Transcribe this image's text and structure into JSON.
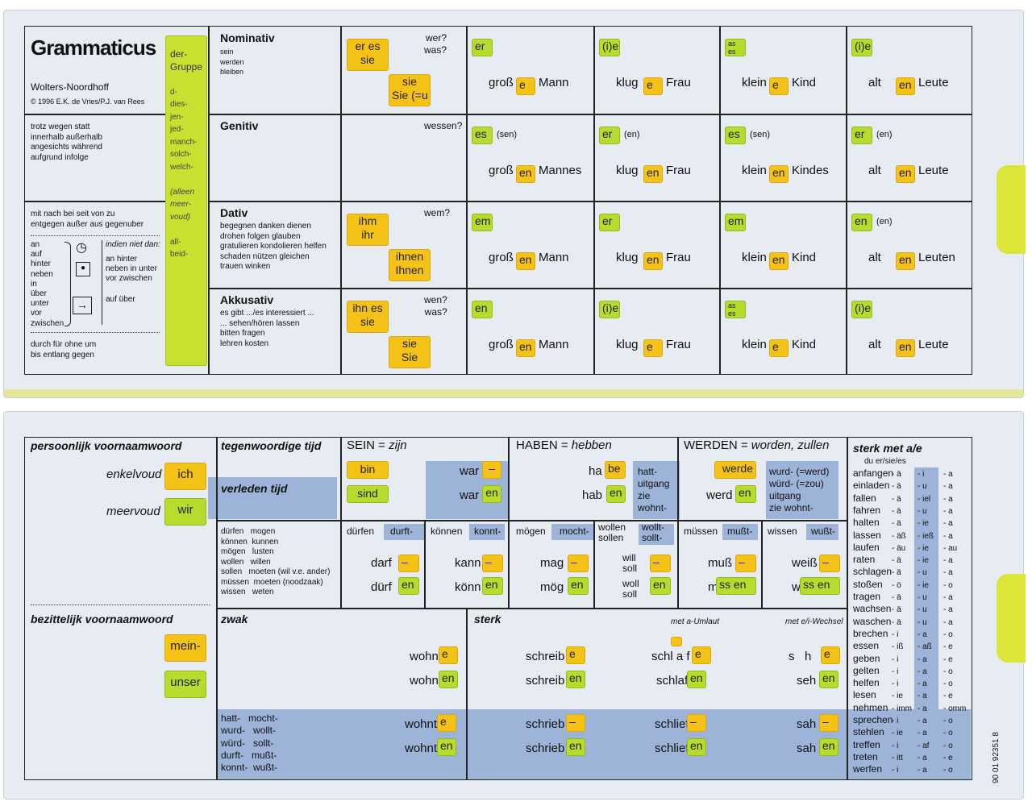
{
  "top": {
    "logo": "Grammaticus",
    "publisher": "Wolters-Noordhoff",
    "copyright": "© 1996 E.K. de Vries/P.J. van Rees",
    "der_gruppe": [
      "der-",
      "Gruppe",
      "",
      "d-",
      "dies-",
      "jen-",
      "jed-",
      "manch-",
      "solch-",
      "welch-",
      "",
      "(alleen",
      "meer-",
      "voud)",
      "",
      "all-",
      "beid-"
    ],
    "prep_gen": [
      "trotz  wegen  statt",
      "innerhalb  außerhalb",
      "angesichts  während",
      "aufgrund  infolge"
    ],
    "prep_dat": [
      "mit  nach  bei  seit  von  zu",
      "entgegen  außer  aus  gegenuber"
    ],
    "prep_wech_left": [
      "an",
      "auf",
      "hinter",
      "neben",
      "in",
      "über",
      "unter",
      "vor",
      "zwischen"
    ],
    "prep_wech_right": [
      "indien niet dan:",
      "an  hinter",
      "neben  in  unter",
      "vor  zwischen",
      "auf  über"
    ],
    "prep_akk": [
      "durch  für  ohne  um",
      "bis  entlang  gegen"
    ],
    "cases": [
      {
        "name": "Nominativ",
        "sub": [
          "sein",
          "werden",
          "bleiben"
        ],
        "q": "wer?\nwas?",
        "y1": "er es\nsie",
        "y2": "sie\nSie (=u",
        "c": [
          {
            "tag": "er",
            "w": [
              "groß",
              "e",
              "Mann"
            ]
          },
          {
            "tag": "(i)e",
            "w": [
              "klug",
              "e",
              "Frau"
            ]
          },
          {
            "tag": "as\nes",
            "w": [
              "klein",
              "e",
              "Kind"
            ]
          },
          {
            "tag": "(i)e",
            "w": [
              "alt",
              "en",
              "Leute"
            ]
          }
        ]
      },
      {
        "name": "Genitiv",
        "sub": [],
        "q": "wessen?",
        "y1": "",
        "y2": "",
        "c": [
          {
            "tag": "es",
            "note": "(sen)",
            "w": [
              "groß",
              "en",
              "Mannes"
            ]
          },
          {
            "tag": "er",
            "note": "(en)",
            "w": [
              "klug",
              "en",
              "Frau"
            ]
          },
          {
            "tag": "es",
            "note": "(sen)",
            "w": [
              "klein",
              "en",
              "Kindes"
            ]
          },
          {
            "tag": "er",
            "note": "(en)",
            "w": [
              "alt",
              "en",
              "Leute"
            ]
          }
        ]
      },
      {
        "name": "Dativ",
        "sub": [
          "begegnen  danken  dienen",
          "drohen  folgen  glauben",
          "gratulieren  kondolieren  helfen",
          "schaden  nützen  gleichen",
          "trauen  winken"
        ],
        "q": "wem?",
        "y1": "ihm\nihr",
        "y2": "ihnen\nIhnen",
        "c": [
          {
            "tag": "em",
            "w": [
              "groß",
              "en",
              "Mann"
            ]
          },
          {
            "tag": "er",
            "w": [
              "klug",
              "en",
              "Frau"
            ]
          },
          {
            "tag": "em",
            "w": [
              "klein",
              "en",
              "Kind"
            ]
          },
          {
            "tag": "en",
            "note": "(en)",
            "w": [
              "alt",
              "en",
              "Leuten"
            ]
          }
        ]
      },
      {
        "name": "Akkusativ",
        "sub": [
          "es gibt .../es interessiert ...",
          "... sehen/hören lassen",
          "bitten  fragen",
          "lehren  kosten"
        ],
        "q": "wen?\nwas?",
        "y1": "ihn es\nsie",
        "y2": "sie\nSie",
        "c": [
          {
            "tag": "en",
            "w": [
              "groß",
              "en",
              "Mann"
            ]
          },
          {
            "tag": "(i)e",
            "w": [
              "klug",
              "e",
              "Frau"
            ]
          },
          {
            "tag": "as\nes",
            "w": [
              "klein",
              "e",
              "Kind"
            ]
          },
          {
            "tag": "(i)e",
            "w": [
              "alt",
              "en",
              "Leute"
            ]
          }
        ]
      }
    ]
  },
  "bottom": {
    "pv_title": "persoonlijk voornaamwoord",
    "enkelvoud": "enkelvoud",
    "ich": "ich",
    "meervoud": "meervoud",
    "wir": "wir",
    "bv_title": "bezittelijk voornaamwoord",
    "mein": "mein-",
    "unser": "unser",
    "tt": "tegenwoordige tijd",
    "vt": "verleden tijd",
    "sein": "SEIN = ",
    "zijn": "zijn",
    "bin": "bin",
    "sind": "sind",
    "war": "war",
    "war_y": "–",
    "war_g": "en",
    "haben": "HABEN = ",
    "hebben": "hebben",
    "ha": "ha",
    "be": "be",
    "hab": "hab",
    "hab_g": "en",
    "hatt": "hatt-\nuitgang\nzie\nwohnt-",
    "werden": "WERDEN = ",
    "zullen": "worden, zullen",
    "werde": "werde",
    "werd": "werd",
    "werd_g": "en",
    "wurd": "wurd- (=werd)\nwürd- (=zou)\nuitgang\nzie wohnt-",
    "modal_list": "dürfen   mogen\nkönnen  kunnen\nmögen   lusten\nwollen   willen\nsollen   moeten (wil v.e. ander)\nmüssen  moeten (noodzaak)\nwissen   weten",
    "modals": [
      {
        "inf": "dürfen",
        "past": "durft-",
        "p1": "darf",
        "p2": "dürf"
      },
      {
        "inf": "können",
        "past": "konnt-",
        "p1": "kann",
        "p2": "könn"
      },
      {
        "inf": "mögen",
        "past": "mocht-",
        "p1": "mag",
        "p2": "mög"
      },
      {
        "inf": "wollen\nsollen",
        "past": "wollt-\nsollt-",
        "p1": "will\nsoll",
        "p2": "woll\nsoll"
      },
      {
        "inf": "müssen",
        "past": "mußt-",
        "p1": "muß",
        "p2": "mü"
      },
      {
        "inf": "wissen",
        "past": "wußt-",
        "p1": "weiß",
        "p2": "wi"
      }
    ],
    "dash": "–",
    "en": "en",
    "e": "e",
    "ssen": "ss en",
    "zwak": "zwak",
    "sterk": "sterk",
    "met_a": "met a-Umlaut",
    "met_e": "met e/i-Wechsel",
    "wohn": "wohn",
    "wohnt": "wohnt",
    "schreib": "schreib",
    "schrieb": "schrieb",
    "schla": "schl a f",
    "schlaf": "schlaf",
    "schlief": "schlief",
    "sh": "s   h",
    "seh": "seh",
    "sah": "sah",
    "past_modals": "hatt-   mocht-\nwurd-   wollt-\nwürd-   sollt-\ndurft-   mußt-\nkonnt-  wußt-",
    "sterk_title": "sterk met a/e",
    "sterk_sub": "du er/sie/es",
    "sterk_verbs": [
      [
        "anfangen",
        "- ä",
        "- i",
        "- a"
      ],
      [
        "einladen",
        "- ä",
        "- u",
        "- a"
      ],
      [
        "fallen",
        "- ä",
        "- iel",
        "- a"
      ],
      [
        "fahren",
        "- ä",
        "- u",
        "- a"
      ],
      [
        "halten",
        "- ä",
        "- ie",
        "- a"
      ],
      [
        "lassen",
        "- äß",
        "- ieß",
        "- a"
      ],
      [
        "laufen",
        "- äu",
        "- ie",
        "- au"
      ],
      [
        "raten",
        "- ä",
        "- ie",
        "- a"
      ],
      [
        "schlagen",
        "- ä",
        "- u",
        "- a"
      ],
      [
        "stoßen",
        "- ö",
        "- ie",
        "- o"
      ],
      [
        "tragen",
        "- ä",
        "- u",
        "- a"
      ],
      [
        "wachsen",
        "- ä",
        "- u",
        "- a"
      ],
      [
        "waschen",
        "- ä",
        "- u",
        "- a"
      ],
      [
        "brechen",
        "- i",
        "- a",
        "- o"
      ],
      [
        "essen",
        "- iß",
        "- aß",
        "- e"
      ],
      [
        "geben",
        "- i",
        "- a",
        "- e"
      ],
      [
        "gelten",
        "- i",
        "- a",
        "- o"
      ],
      [
        "helfen",
        "- i",
        "- a",
        "- o"
      ],
      [
        "lesen",
        "- ie",
        "- a",
        "- e"
      ],
      [
        "nehmen",
        "- imm",
        "- a",
        "- omm"
      ],
      [
        "sprechen",
        "- i",
        "- a",
        "- o"
      ],
      [
        "stehlen",
        "- ie",
        "- a",
        "- o"
      ],
      [
        "treffen",
        "- i",
        "- af",
        "- o"
      ],
      [
        "treten",
        "- itt",
        "- a",
        "- e"
      ],
      [
        "werfen",
        "- i",
        "- a",
        "- o"
      ]
    ],
    "code": "90 01 92351 8"
  }
}
